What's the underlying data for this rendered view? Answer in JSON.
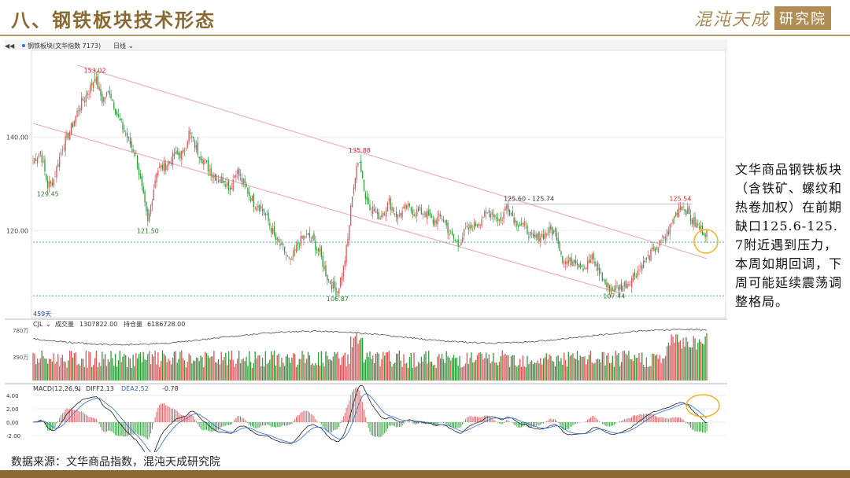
{
  "page": {
    "title": "八、钢铁板块技术形态",
    "logo_script": "混沌天成",
    "logo_box": "研究院",
    "source": "数据来源：文华商品指数，混沌天成研究院",
    "commentary": "文华商品钢铁板块（含铁矿、螺纹和热卷加权）在前期缺口125.6-125.7附近遇到压力，本周如期回调，下周可能延续震荡调整格局。"
  },
  "chart_header": {
    "symbol": "钢铁板块(文华指数 7173)",
    "period": "日线",
    "bar_count_label": "459天"
  },
  "volume_header": {
    "name": "CJL",
    "vol_label": "成交量",
    "vol_value": "1307822.00",
    "oi_label": "持仓量",
    "oi_value": "6186728.00",
    "ticks": [
      "780万",
      "390万"
    ]
  },
  "macd_header": {
    "name": "MACD(12,26,9)",
    "diff_label": "DIFF",
    "diff_value": "2.13",
    "dea_label": "DEA",
    "dea_value": "2.52",
    "macd_value": "-0.78"
  },
  "colors": {
    "up": "#e0555a",
    "down": "#2f9a3a",
    "trend": "#f2a0b0",
    "support": "#3bb8a8",
    "highlight": "#f0b41e",
    "label_green": "#2c7a2c",
    "label_red": "#d6262e"
  },
  "chart_data": {
    "type": "candlestick",
    "y_ticks": [
      "140.00",
      "120.00"
    ],
    "ylim": [
      102,
      158
    ],
    "peak_labels": [
      {
        "index": 10,
        "value": "129.45",
        "kind": "low"
      },
      {
        "index": 42,
        "value": "153.02",
        "kind": "high"
      },
      {
        "index": 78,
        "value": "121.50",
        "kind": "low"
      },
      {
        "index": 207,
        "value": "106.87",
        "kind": "low"
      },
      {
        "index": 222,
        "value": "135.88",
        "kind": "high"
      },
      {
        "index": 395,
        "value": "107.44",
        "kind": "low"
      },
      {
        "index": 440,
        "value": "125.54",
        "kind": "high"
      }
    ],
    "range_label": {
      "index": 320,
      "value": "125.60 - 125.74"
    },
    "gap_level": 125.7,
    "support_levels": [
      117.5,
      106.0
    ],
    "trend_lines": [
      {
        "from": [
          30,
          155.5
        ],
        "to": [
          458,
          114.0
        ]
      },
      {
        "from": [
          0,
          143.0
        ],
        "to": [
          400,
          106.5
        ]
      }
    ],
    "anchors": [
      [
        0,
        135
      ],
      [
        5,
        137
      ],
      [
        10,
        129.5
      ],
      [
        14,
        131
      ],
      [
        20,
        138
      ],
      [
        26,
        142
      ],
      [
        32,
        147
      ],
      [
        38,
        150
      ],
      [
        42,
        153
      ],
      [
        47,
        148
      ],
      [
        52,
        150
      ],
      [
        58,
        144
      ],
      [
        64,
        140
      ],
      [
        70,
        136
      ],
      [
        75,
        127
      ],
      [
        78,
        121.5
      ],
      [
        84,
        133
      ],
      [
        90,
        134
      ],
      [
        96,
        136
      ],
      [
        102,
        136.5
      ],
      [
        106,
        141
      ],
      [
        112,
        137
      ],
      [
        120,
        133
      ],
      [
        126,
        131
      ],
      [
        130,
        131
      ],
      [
        134,
        129
      ],
      [
        138,
        133
      ],
      [
        145,
        129
      ],
      [
        150,
        126
      ],
      [
        155,
        125
      ],
      [
        160,
        122
      ],
      [
        165,
        118
      ],
      [
        170,
        116
      ],
      [
        175,
        113
      ],
      [
        180,
        117
      ],
      [
        185,
        119
      ],
      [
        190,
        118
      ],
      [
        195,
        115
      ],
      [
        200,
        110
      ],
      [
        204,
        108
      ],
      [
        207,
        107
      ],
      [
        211,
        112
      ],
      [
        214,
        118
      ],
      [
        217,
        128
      ],
      [
        220,
        133
      ],
      [
        222,
        135.5
      ],
      [
        226,
        127
      ],
      [
        230,
        125
      ],
      [
        236,
        123
      ],
      [
        242,
        126
      ],
      [
        248,
        123
      ],
      [
        254,
        125
      ],
      [
        260,
        124
      ],
      [
        266,
        124
      ],
      [
        272,
        122
      ],
      [
        278,
        123
      ],
      [
        284,
        119
      ],
      [
        289,
        117
      ],
      [
        294,
        120
      ],
      [
        300,
        121
      ],
      [
        306,
        123
      ],
      [
        312,
        124
      ],
      [
        318,
        122
      ],
      [
        322,
        125.6
      ],
      [
        328,
        122
      ],
      [
        334,
        121
      ],
      [
        340,
        118
      ],
      [
        346,
        119
      ],
      [
        352,
        120
      ],
      [
        356,
        119
      ],
      [
        360,
        114
      ],
      [
        364,
        113
      ],
      [
        368,
        114
      ],
      [
        375,
        112
      ],
      [
        380,
        114
      ],
      [
        385,
        111
      ],
      [
        390,
        108
      ],
      [
        395,
        107.5
      ],
      [
        400,
        108
      ],
      [
        405,
        109
      ],
      [
        410,
        111
      ],
      [
        415,
        113
      ],
      [
        420,
        115
      ],
      [
        426,
        117
      ],
      [
        432,
        120
      ],
      [
        436,
        123
      ],
      [
        440,
        125.5
      ],
      [
        444,
        124.5
      ],
      [
        448,
        122
      ],
      [
        452,
        121
      ],
      [
        455,
        120
      ],
      [
        458,
        119.5
      ]
    ],
    "n": 459
  }
}
